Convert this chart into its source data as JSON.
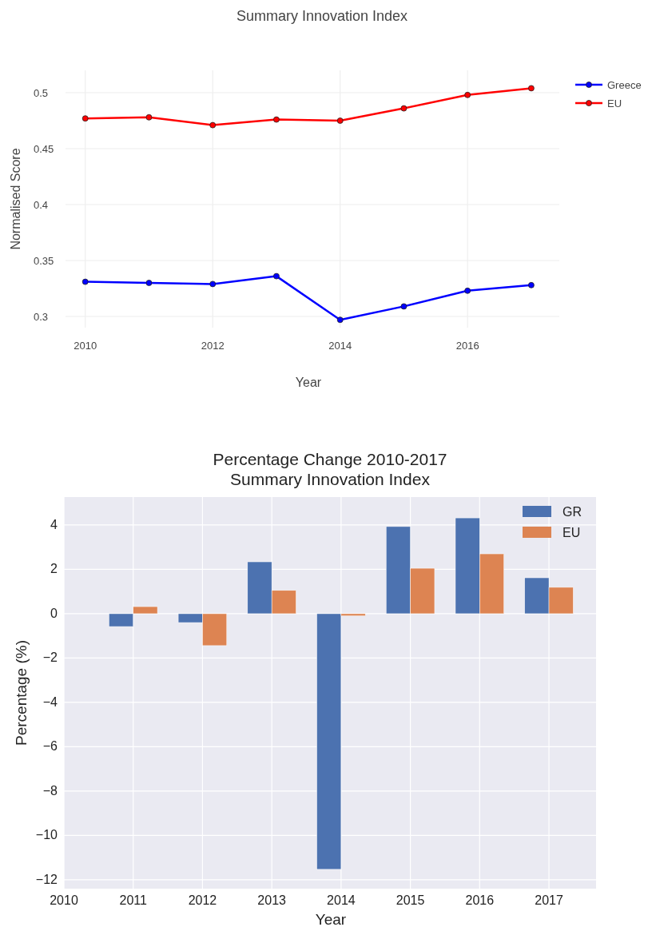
{
  "chart_data": [
    {
      "type": "line",
      "title": "Summary Innovation Index",
      "xlabel": "Year",
      "ylabel": "Normalised Score",
      "x": [
        2010,
        2011,
        2012,
        2013,
        2014,
        2015,
        2016,
        2017
      ],
      "series": [
        {
          "name": "Greece",
          "color": "#0000ff",
          "values": [
            0.331,
            0.33,
            0.329,
            0.336,
            0.297,
            0.309,
            0.323,
            0.328
          ]
        },
        {
          "name": "EU",
          "color": "#ff0000",
          "values": [
            0.477,
            0.478,
            0.471,
            0.476,
            0.475,
            0.486,
            0.498,
            0.504
          ]
        }
      ],
      "xlim": [
        2009.69,
        2017.44
      ],
      "xticks": [
        2010,
        2012,
        2014,
        2016
      ],
      "ylim": [
        0.29,
        0.52
      ],
      "yticks": [
        0.3,
        0.35,
        0.4,
        0.45,
        0.5
      ],
      "grid": true,
      "legend": "top right",
      "marker": "circle",
      "line_style": "solid"
    },
    {
      "type": "bar",
      "title": "Percentage Change 2010-2017\nSummary Innovation Index",
      "xlabel": "Year",
      "ylabel": "Percentage (%)",
      "x": [
        2011,
        2012,
        2013,
        2014,
        2015,
        2016,
        2017
      ],
      "series": [
        {
          "name": "GR",
          "color": "#4c72b0",
          "values": [
            -0.58,
            -0.4,
            2.34,
            -11.53,
            3.93,
            4.32,
            1.62
          ]
        },
        {
          "name": "EU",
          "color": "#dd8452",
          "values": [
            0.32,
            -1.44,
            1.05,
            -0.1,
            2.05,
            2.7,
            1.19
          ]
        }
      ],
      "xlim": [
        2010,
        2017.68
      ],
      "xticks": [
        2010,
        2011,
        2012,
        2013,
        2014,
        2015,
        2016,
        2017
      ],
      "ylim": [
        -12.4,
        5.26
      ],
      "yticks": [
        {
          "value": -12,
          "label": "−12"
        },
        {
          "value": -10,
          "label": "−10"
        },
        {
          "value": -8,
          "label": "−8"
        },
        {
          "value": -6,
          "label": "−6"
        },
        {
          "value": -4,
          "label": "−4"
        },
        {
          "value": -2,
          "label": "−2"
        },
        0,
        2,
        4
      ],
      "grid": true,
      "legend": "top right"
    }
  ]
}
